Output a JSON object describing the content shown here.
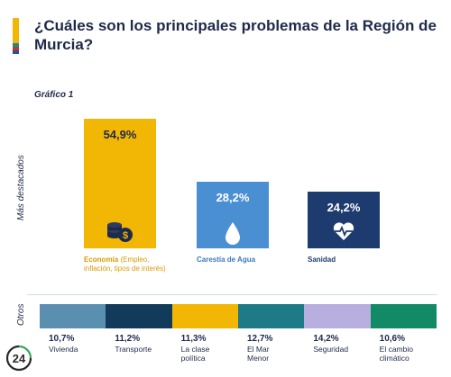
{
  "title": "¿Cuáles son los principales problemas de la Región de Murcia?",
  "subtitle": "Gráfico 1",
  "axis_main_label": "Más destacados",
  "axis_others_label": "Otros",
  "logo_text": "24",
  "colors": {
    "accent_yellow": "#f2b705",
    "navy": "#1e2a4a"
  },
  "chart_data": [
    {
      "type": "bar",
      "categories": [
        "Economía",
        "Carestía de Agua",
        "Sanidad"
      ],
      "category_details": [
        "(Empleo, inflación, tipos de interés)",
        "",
        ""
      ],
      "values": [
        54.9,
        28.2,
        24.2
      ],
      "value_labels": [
        "54,9%",
        "28,2%",
        "24,2%"
      ],
      "colors": [
        "#f2b705",
        "#4a8fd1",
        "#1d3b6e"
      ],
      "icons": [
        "coins-icon",
        "water-drop-icon",
        "heart-pulse-icon"
      ],
      "ylim": [
        0,
        54.9
      ]
    },
    {
      "type": "bar",
      "categories": [
        "Vivienda",
        "Transporte",
        "La clase política",
        "El Mar Menor",
        "Seguridad",
        "El cambio climático"
      ],
      "category_lines": [
        [
          "Vivienda"
        ],
        [
          "Transporte"
        ],
        [
          "La clase",
          "política"
        ],
        [
          "El Mar",
          "Menor"
        ],
        [
          "Seguridad"
        ],
        [
          "El cambio",
          "climático"
        ]
      ],
      "values": [
        10.7,
        11.2,
        11.3,
        12.7,
        14.2,
        10.6
      ],
      "value_labels": [
        "10,7%",
        "11,2%",
        "11,3%",
        "12,7%",
        "14,2%",
        "10,6%"
      ],
      "colors": [
        "#5b8fb0",
        "#123a5a",
        "#f2b705",
        "#1d7a86",
        "#b9aee0",
        "#138a66"
      ]
    }
  ]
}
